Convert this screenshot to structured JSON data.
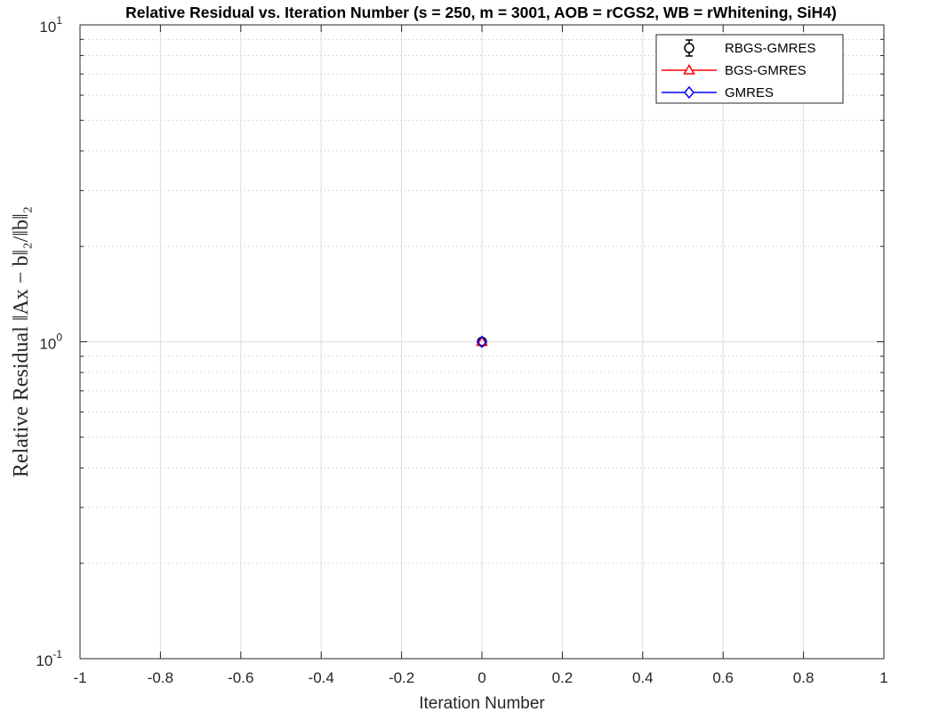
{
  "chart_data": {
    "type": "line",
    "title": "Relative Residual vs. Iteration Number (s = 250, m = 3001, AOB = rCGS2, WB = rWhitening, SiH4)",
    "xlabel": "Iteration Number",
    "ylabel": "Relative Residual ‖Ax − b‖₂/‖b‖₂",
    "xlim": [
      -1,
      1
    ],
    "ylim": [
      0.1,
      10
    ],
    "yscale": "log",
    "grid": true,
    "legend_position": "top-right",
    "x_ticks": [
      "-1",
      "-0.8",
      "-0.6",
      "-0.4",
      "-0.2",
      "0",
      "0.2",
      "0.4",
      "0.6",
      "0.8",
      "1"
    ],
    "y_ticks": [
      {
        "base": "10",
        "exp": "-1"
      },
      {
        "base": "10",
        "exp": "0"
      },
      {
        "base": "10",
        "exp": "1"
      }
    ],
    "series": [
      {
        "name": "RBGS-GMRES",
        "color": "#000000",
        "marker": "circle",
        "errorbar": true,
        "x": [
          0
        ],
        "y": [
          1
        ]
      },
      {
        "name": "BGS-GMRES",
        "color": "#ff0000",
        "marker": "triangle",
        "x": [
          0
        ],
        "y": [
          1
        ]
      },
      {
        "name": "GMRES",
        "color": "#0000ff",
        "marker": "diamond",
        "x": [
          0
        ],
        "y": [
          1
        ]
      }
    ]
  }
}
